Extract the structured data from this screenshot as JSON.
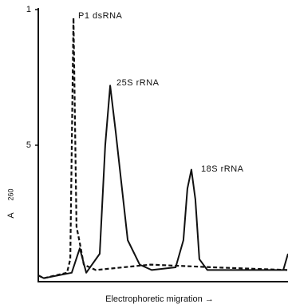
{
  "chart_data": {
    "type": "line",
    "annotations": [
      "P1 dsRNA",
      "25S rRNA",
      "18S rRNA"
    ],
    "xlabel": "Electrophoretic migration →",
    "ylabel": "A",
    "ylabel_subscript": "260",
    "xlim": [
      0,
      100
    ],
    "ylim": [
      0,
      1
    ],
    "yticks": [
      1,
      {
        "value": 0.5,
        "label": "5"
      }
    ],
    "series": [
      {
        "color": "#111111",
        "style": "solid",
        "x": [
          0,
          2.2,
          13.4,
          16.6,
          19.2,
          24.6,
          26.8,
          28.8,
          31,
          35.8,
          40.6,
          45.4,
          55,
          58.1,
          59.7,
          61.3,
          62.9,
          64.5,
          67.7,
          98.1,
          100
        ],
        "values": [
          0.02,
          0.01,
          0.03,
          0.12,
          0.03,
          0.1,
          0.5,
          0.72,
          0.55,
          0.15,
          0.06,
          0.04,
          0.05,
          0.15,
          0.34,
          0.41,
          0.3,
          0.08,
          0.04,
          0.04,
          0.1
        ]
      },
      {
        "color": "#111111",
        "style": "dashed",
        "x": [
          0,
          2.2,
          11.5,
          12.8,
          14.1,
          15.3,
          16.6,
          18.2,
          23,
          45,
          70,
          100
        ],
        "values": [
          0.02,
          0.01,
          0.03,
          0.08,
          0.97,
          0.2,
          0.14,
          0.06,
          0.04,
          0.06,
          0.05,
          0.04
        ]
      }
    ]
  }
}
